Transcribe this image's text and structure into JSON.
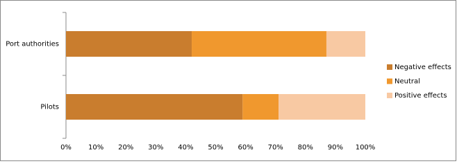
{
  "chart_data": {
    "type": "stacked-bar-horizontal",
    "categories": [
      "Port authorities",
      "Pilots"
    ],
    "series": [
      {
        "name": "Negative effects",
        "color": "#c97d2e",
        "values": [
          42,
          59
        ]
      },
      {
        "name": "Neutral",
        "color": "#f0982e",
        "values": [
          45,
          12
        ]
      },
      {
        "name": "Positive effects",
        "color": "#f8c9a3",
        "values": [
          13,
          29
        ]
      }
    ],
    "xlim": [
      0,
      100
    ],
    "xticks": [
      {
        "value": 0,
        "label": "0%"
      },
      {
        "value": 10,
        "label": "10%"
      },
      {
        "value": 20,
        "label": "20%"
      },
      {
        "value": 30,
        "label": "30%"
      },
      {
        "value": 40,
        "label": "40%"
      },
      {
        "value": 50,
        "label": "50%"
      },
      {
        "value": 60,
        "label": "60%"
      },
      {
        "value": 70,
        "label": "70%"
      },
      {
        "value": 80,
        "label": "80%"
      },
      {
        "value": 90,
        "label": "90%"
      },
      {
        "value": 100,
        "label": "100%"
      }
    ],
    "legend": "right"
  }
}
